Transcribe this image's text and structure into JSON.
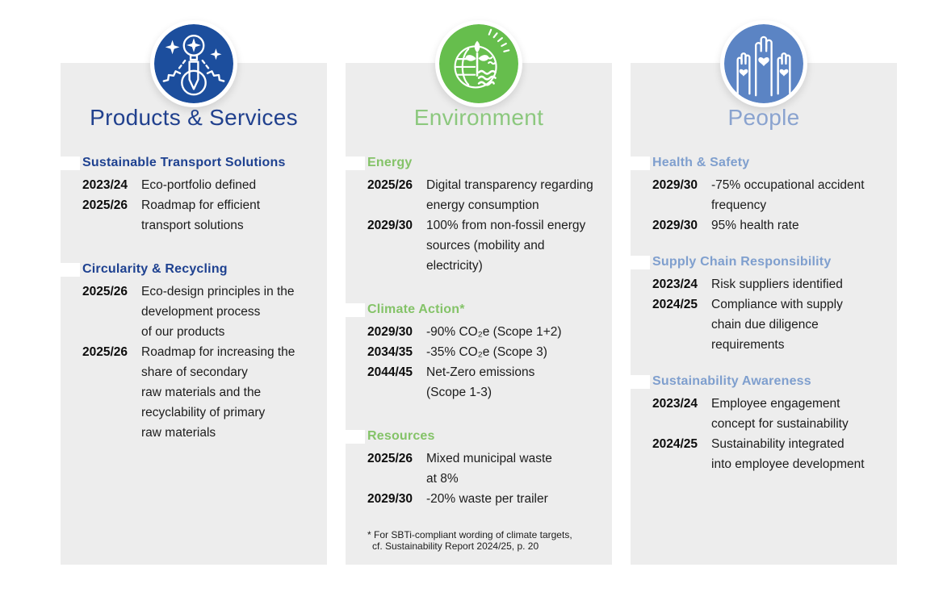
{
  "theme": {
    "page_bg": "#FFFFFF",
    "panel_bg": "#EDEDED",
    "body_text_color": "#1C1C1C",
    "columns": [
      {
        "accent": "#1C4E9D",
        "title_color": "#21418E",
        "heading_color": "#1E4190"
      },
      {
        "accent": "#66BE4D",
        "title_color": "#8CC87E",
        "heading_color": "#84C368"
      },
      {
        "accent": "#5B84C4",
        "title_color": "#8AA3CF",
        "heading_color": "#7F9FCE"
      }
    ]
  },
  "columns": [
    {
      "title": "Products & Services",
      "icon": "innovation-icon",
      "sections": [
        {
          "heading": "Sustainable Transport Solutions",
          "items": [
            {
              "year": "2023/24",
              "lines": [
                "Eco-portfolio defined"
              ]
            },
            {
              "year": "2025/26",
              "lines": [
                "Roadmap for efficient",
                "transport solutions"
              ]
            }
          ]
        },
        {
          "heading": "Circularity & Recycling",
          "items": [
            {
              "year": "2025/26",
              "lines": [
                "Eco-design principles in the",
                "development process",
                "of our products"
              ]
            },
            {
              "year": "2025/26",
              "lines": [
                "Roadmap for increasing the",
                "share of secondary",
                "raw materials and the",
                "recyclability of primary",
                "raw materials"
              ]
            }
          ]
        }
      ]
    },
    {
      "title": "Environment",
      "icon": "environment-globe-icon",
      "sections": [
        {
          "heading": "Energy",
          "items": [
            {
              "year": "2025/26",
              "lines": [
                "Digital transparency regarding",
                "energy consumption"
              ]
            },
            {
              "year": "2029/30",
              "lines": [
                "100% from non-fossil energy",
                "sources (mobility and",
                "electricity)"
              ]
            }
          ]
        },
        {
          "heading": "Climate Action*",
          "items": [
            {
              "year": "2029/30",
              "lines": [
                "-90% CO₂e (Scope 1+2)"
              ]
            },
            {
              "year": "2034/35",
              "lines": [
                "-35% CO₂e (Scope 3)"
              ]
            },
            {
              "year": "2044/45",
              "lines": [
                "Net-Zero emissions",
                "(Scope 1-3)"
              ]
            }
          ]
        },
        {
          "heading": "Resources",
          "items": [
            {
              "year": "2025/26",
              "lines": [
                "Mixed municipal waste",
                "at 8%"
              ]
            },
            {
              "year": "2029/30",
              "lines": [
                "-20% waste per trailer"
              ]
            }
          ]
        }
      ],
      "footnote_lines": [
        "* For SBTi-compliant wording of climate targets,",
        "cf. Sustainability Report 2024/25, p. 20"
      ]
    },
    {
      "title": "People",
      "icon": "raised-hands-heart-icon",
      "sections": [
        {
          "heading": "Health & Safety",
          "items": [
            {
              "year": "2029/30",
              "lines": [
                "-75% occupational accident",
                "frequency"
              ]
            },
            {
              "year": "2029/30",
              "lines": [
                "95% health rate"
              ]
            }
          ]
        },
        {
          "heading": "Supply Chain Responsibility",
          "items": [
            {
              "year": "2023/24",
              "lines": [
                "Risk suppliers identified"
              ]
            },
            {
              "year": "2024/25",
              "lines": [
                "Compliance with supply",
                "chain due diligence",
                "requirements"
              ]
            }
          ]
        },
        {
          "heading": "Sustainability Awareness",
          "items": [
            {
              "year": "2023/24",
              "lines": [
                "Employee engagement",
                "concept for sustainability"
              ]
            },
            {
              "year": "2024/25",
              "lines": [
                "Sustainability integrated",
                "into employee development"
              ]
            }
          ]
        }
      ]
    }
  ]
}
